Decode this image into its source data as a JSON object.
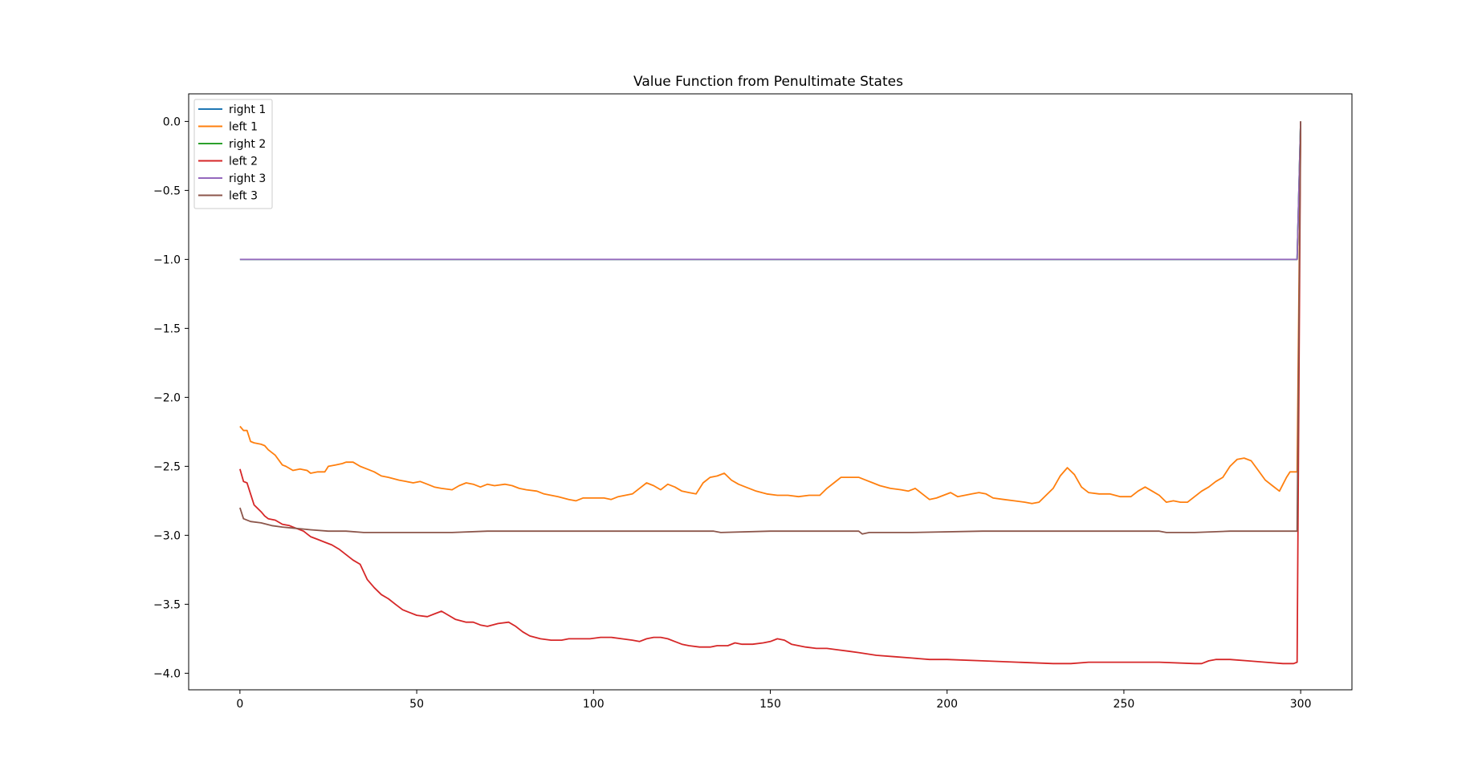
{
  "chart_data": {
    "type": "line",
    "title": "Value Function from Penultimate States",
    "xlabel": "",
    "ylabel": "",
    "xlim": [
      -14.5,
      314.5
    ],
    "ylim": [
      -4.12,
      0.2
    ],
    "xticks": [
      0,
      50,
      100,
      150,
      200,
      250,
      300
    ],
    "yticks": [
      0.0,
      -0.5,
      -1.0,
      -1.5,
      -2.0,
      -2.5,
      -3.0,
      -3.5,
      -4.0
    ],
    "ytick_labels": [
      "0.0",
      "−0.5",
      "−1.0",
      "−1.5",
      "−2.0",
      "−2.5",
      "−3.0",
      "−3.5",
      "−4.0"
    ],
    "xtick_labels": [
      "0",
      "50",
      "100",
      "150",
      "200",
      "250",
      "300"
    ],
    "grid": false,
    "legend_position": "upper-left",
    "series": [
      {
        "name": "right 1",
        "color": "#1f77b4",
        "points": [
          [
            0,
            -1.0
          ],
          [
            299,
            -1.0
          ],
          [
            300,
            0.0
          ]
        ]
      },
      {
        "name": "left 1",
        "color": "#ff7f0e",
        "points": [
          [
            0,
            -2.21
          ],
          [
            1,
            -2.24
          ],
          [
            2,
            -2.24
          ],
          [
            3,
            -2.32
          ],
          [
            4,
            -2.33
          ],
          [
            6,
            -2.34
          ],
          [
            7,
            -2.35
          ],
          [
            8,
            -2.38
          ],
          [
            10,
            -2.42
          ],
          [
            12,
            -2.49
          ],
          [
            13,
            -2.5
          ],
          [
            15,
            -2.53
          ],
          [
            17,
            -2.52
          ],
          [
            19,
            -2.53
          ],
          [
            20,
            -2.55
          ],
          [
            22,
            -2.54
          ],
          [
            24,
            -2.54
          ],
          [
            25,
            -2.5
          ],
          [
            27,
            -2.49
          ],
          [
            29,
            -2.48
          ],
          [
            30,
            -2.47
          ],
          [
            32,
            -2.47
          ],
          [
            34,
            -2.5
          ],
          [
            36,
            -2.52
          ],
          [
            38,
            -2.54
          ],
          [
            40,
            -2.57
          ],
          [
            42,
            -2.58
          ],
          [
            45,
            -2.6
          ],
          [
            47,
            -2.61
          ],
          [
            49,
            -2.62
          ],
          [
            51,
            -2.61
          ],
          [
            53,
            -2.63
          ],
          [
            55,
            -2.65
          ],
          [
            57,
            -2.66
          ],
          [
            60,
            -2.67
          ],
          [
            62,
            -2.64
          ],
          [
            64,
            -2.62
          ],
          [
            66,
            -2.63
          ],
          [
            68,
            -2.65
          ],
          [
            70,
            -2.63
          ],
          [
            72,
            -2.64
          ],
          [
            75,
            -2.63
          ],
          [
            77,
            -2.64
          ],
          [
            79,
            -2.66
          ],
          [
            81,
            -2.67
          ],
          [
            84,
            -2.68
          ],
          [
            86,
            -2.7
          ],
          [
            88,
            -2.71
          ],
          [
            90,
            -2.72
          ],
          [
            93,
            -2.74
          ],
          [
            95,
            -2.75
          ],
          [
            97,
            -2.73
          ],
          [
            100,
            -2.73
          ],
          [
            103,
            -2.73
          ],
          [
            105,
            -2.74
          ],
          [
            107,
            -2.72
          ],
          [
            109,
            -2.71
          ],
          [
            111,
            -2.7
          ],
          [
            113,
            -2.66
          ],
          [
            115,
            -2.62
          ],
          [
            117,
            -2.64
          ],
          [
            119,
            -2.67
          ],
          [
            121,
            -2.63
          ],
          [
            123,
            -2.65
          ],
          [
            125,
            -2.68
          ],
          [
            127,
            -2.69
          ],
          [
            129,
            -2.7
          ],
          [
            131,
            -2.62
          ],
          [
            133,
            -2.58
          ],
          [
            135,
            -2.57
          ],
          [
            137,
            -2.55
          ],
          [
            139,
            -2.6
          ],
          [
            141,
            -2.63
          ],
          [
            143,
            -2.65
          ],
          [
            146,
            -2.68
          ],
          [
            149,
            -2.7
          ],
          [
            152,
            -2.71
          ],
          [
            155,
            -2.71
          ],
          [
            158,
            -2.72
          ],
          [
            161,
            -2.71
          ],
          [
            164,
            -2.71
          ],
          [
            166,
            -2.66
          ],
          [
            168,
            -2.62
          ],
          [
            170,
            -2.58
          ],
          [
            172,
            -2.58
          ],
          [
            175,
            -2.58
          ],
          [
            177,
            -2.6
          ],
          [
            179,
            -2.62
          ],
          [
            181,
            -2.64
          ],
          [
            184,
            -2.66
          ],
          [
            187,
            -2.67
          ],
          [
            189,
            -2.68
          ],
          [
            191,
            -2.66
          ],
          [
            193,
            -2.7
          ],
          [
            195,
            -2.74
          ],
          [
            197,
            -2.73
          ],
          [
            199,
            -2.71
          ],
          [
            201,
            -2.69
          ],
          [
            203,
            -2.72
          ],
          [
            205,
            -2.71
          ],
          [
            207,
            -2.7
          ],
          [
            209,
            -2.69
          ],
          [
            211,
            -2.7
          ],
          [
            213,
            -2.73
          ],
          [
            216,
            -2.74
          ],
          [
            219,
            -2.75
          ],
          [
            222,
            -2.76
          ],
          [
            224,
            -2.77
          ],
          [
            226,
            -2.76
          ],
          [
            228,
            -2.71
          ],
          [
            230,
            -2.66
          ],
          [
            232,
            -2.57
          ],
          [
            234,
            -2.51
          ],
          [
            236,
            -2.56
          ],
          [
            238,
            -2.65
          ],
          [
            240,
            -2.69
          ],
          [
            243,
            -2.7
          ],
          [
            246,
            -2.7
          ],
          [
            249,
            -2.72
          ],
          [
            252,
            -2.72
          ],
          [
            254,
            -2.68
          ],
          [
            256,
            -2.65
          ],
          [
            258,
            -2.68
          ],
          [
            260,
            -2.71
          ],
          [
            262,
            -2.76
          ],
          [
            264,
            -2.75
          ],
          [
            266,
            -2.76
          ],
          [
            268,
            -2.76
          ],
          [
            270,
            -2.72
          ],
          [
            272,
            -2.68
          ],
          [
            274,
            -2.65
          ],
          [
            276,
            -2.61
          ],
          [
            278,
            -2.58
          ],
          [
            280,
            -2.5
          ],
          [
            282,
            -2.45
          ],
          [
            284,
            -2.44
          ],
          [
            286,
            -2.46
          ],
          [
            288,
            -2.53
          ],
          [
            290,
            -2.6
          ],
          [
            292,
            -2.64
          ],
          [
            294,
            -2.68
          ],
          [
            296,
            -2.58
          ],
          [
            297,
            -2.54
          ],
          [
            299,
            -2.54
          ],
          [
            300,
            0.0
          ]
        ]
      },
      {
        "name": "right 2",
        "color": "#2ca02c",
        "points": [
          [
            0,
            -1.0
          ],
          [
            299,
            -1.0
          ],
          [
            300,
            0.0
          ]
        ]
      },
      {
        "name": "left 2",
        "color": "#d62728",
        "points": [
          [
            0,
            -2.52
          ],
          [
            1,
            -2.61
          ],
          [
            2,
            -2.62
          ],
          [
            3,
            -2.7
          ],
          [
            4,
            -2.78
          ],
          [
            6,
            -2.83
          ],
          [
            7,
            -2.86
          ],
          [
            8,
            -2.88
          ],
          [
            10,
            -2.89
          ],
          [
            12,
            -2.92
          ],
          [
            14,
            -2.93
          ],
          [
            16,
            -2.95
          ],
          [
            18,
            -2.97
          ],
          [
            20,
            -3.01
          ],
          [
            22,
            -3.03
          ],
          [
            24,
            -3.05
          ],
          [
            26,
            -3.07
          ],
          [
            28,
            -3.1
          ],
          [
            30,
            -3.14
          ],
          [
            32,
            -3.18
          ],
          [
            34,
            -3.21
          ],
          [
            36,
            -3.32
          ],
          [
            38,
            -3.38
          ],
          [
            40,
            -3.43
          ],
          [
            42,
            -3.46
          ],
          [
            44,
            -3.5
          ],
          [
            46,
            -3.54
          ],
          [
            48,
            -3.56
          ],
          [
            50,
            -3.58
          ],
          [
            53,
            -3.59
          ],
          [
            55,
            -3.57
          ],
          [
            57,
            -3.55
          ],
          [
            59,
            -3.58
          ],
          [
            61,
            -3.61
          ],
          [
            64,
            -3.63
          ],
          [
            66,
            -3.63
          ],
          [
            68,
            -3.65
          ],
          [
            70,
            -3.66
          ],
          [
            73,
            -3.64
          ],
          [
            76,
            -3.63
          ],
          [
            78,
            -3.66
          ],
          [
            80,
            -3.7
          ],
          [
            82,
            -3.73
          ],
          [
            85,
            -3.75
          ],
          [
            88,
            -3.76
          ],
          [
            91,
            -3.76
          ],
          [
            93,
            -3.75
          ],
          [
            96,
            -3.75
          ],
          [
            99,
            -3.75
          ],
          [
            102,
            -3.74
          ],
          [
            105,
            -3.74
          ],
          [
            108,
            -3.75
          ],
          [
            111,
            -3.76
          ],
          [
            113,
            -3.77
          ],
          [
            115,
            -3.75
          ],
          [
            117,
            -3.74
          ],
          [
            119,
            -3.74
          ],
          [
            121,
            -3.75
          ],
          [
            123,
            -3.77
          ],
          [
            125,
            -3.79
          ],
          [
            127,
            -3.8
          ],
          [
            130,
            -3.81
          ],
          [
            133,
            -3.81
          ],
          [
            135,
            -3.8
          ],
          [
            138,
            -3.8
          ],
          [
            140,
            -3.78
          ],
          [
            142,
            -3.79
          ],
          [
            145,
            -3.79
          ],
          [
            148,
            -3.78
          ],
          [
            150,
            -3.77
          ],
          [
            152,
            -3.75
          ],
          [
            154,
            -3.76
          ],
          [
            156,
            -3.79
          ],
          [
            158,
            -3.8
          ],
          [
            160,
            -3.81
          ],
          [
            163,
            -3.82
          ],
          [
            166,
            -3.82
          ],
          [
            169,
            -3.83
          ],
          [
            172,
            -3.84
          ],
          [
            175,
            -3.85
          ],
          [
            180,
            -3.87
          ],
          [
            185,
            -3.88
          ],
          [
            190,
            -3.89
          ],
          [
            195,
            -3.9
          ],
          [
            200,
            -3.9
          ],
          [
            210,
            -3.91
          ],
          [
            220,
            -3.92
          ],
          [
            230,
            -3.93
          ],
          [
            235,
            -3.93
          ],
          [
            240,
            -3.92
          ],
          [
            250,
            -3.92
          ],
          [
            260,
            -3.92
          ],
          [
            270,
            -3.93
          ],
          [
            272,
            -3.93
          ],
          [
            274,
            -3.91
          ],
          [
            276,
            -3.9
          ],
          [
            280,
            -3.9
          ],
          [
            285,
            -3.91
          ],
          [
            290,
            -3.92
          ],
          [
            295,
            -3.93
          ],
          [
            298,
            -3.93
          ],
          [
            299,
            -3.92
          ],
          [
            300,
            0.0
          ]
        ]
      },
      {
        "name": "right 3",
        "color": "#9467bd",
        "points": [
          [
            0,
            -1.0
          ],
          [
            299,
            -1.0
          ],
          [
            300,
            0.0
          ]
        ]
      },
      {
        "name": "left 3",
        "color": "#8c564b",
        "points": [
          [
            0,
            -2.8
          ],
          [
            1,
            -2.88
          ],
          [
            3,
            -2.9
          ],
          [
            6,
            -2.91
          ],
          [
            9,
            -2.93
          ],
          [
            12,
            -2.94
          ],
          [
            16,
            -2.95
          ],
          [
            20,
            -2.96
          ],
          [
            25,
            -2.97
          ],
          [
            30,
            -2.97
          ],
          [
            35,
            -2.98
          ],
          [
            40,
            -2.98
          ],
          [
            50,
            -2.98
          ],
          [
            60,
            -2.98
          ],
          [
            70,
            -2.97
          ],
          [
            80,
            -2.97
          ],
          [
            100,
            -2.97
          ],
          [
            120,
            -2.97
          ],
          [
            134,
            -2.97
          ],
          [
            136,
            -2.98
          ],
          [
            150,
            -2.97
          ],
          [
            175,
            -2.97
          ],
          [
            176,
            -2.99
          ],
          [
            178,
            -2.98
          ],
          [
            190,
            -2.98
          ],
          [
            210,
            -2.97
          ],
          [
            230,
            -2.97
          ],
          [
            250,
            -2.97
          ],
          [
            260,
            -2.97
          ],
          [
            262,
            -2.98
          ],
          [
            270,
            -2.98
          ],
          [
            280,
            -2.97
          ],
          [
            299,
            -2.97
          ],
          [
            300,
            0.0
          ]
        ]
      }
    ]
  }
}
